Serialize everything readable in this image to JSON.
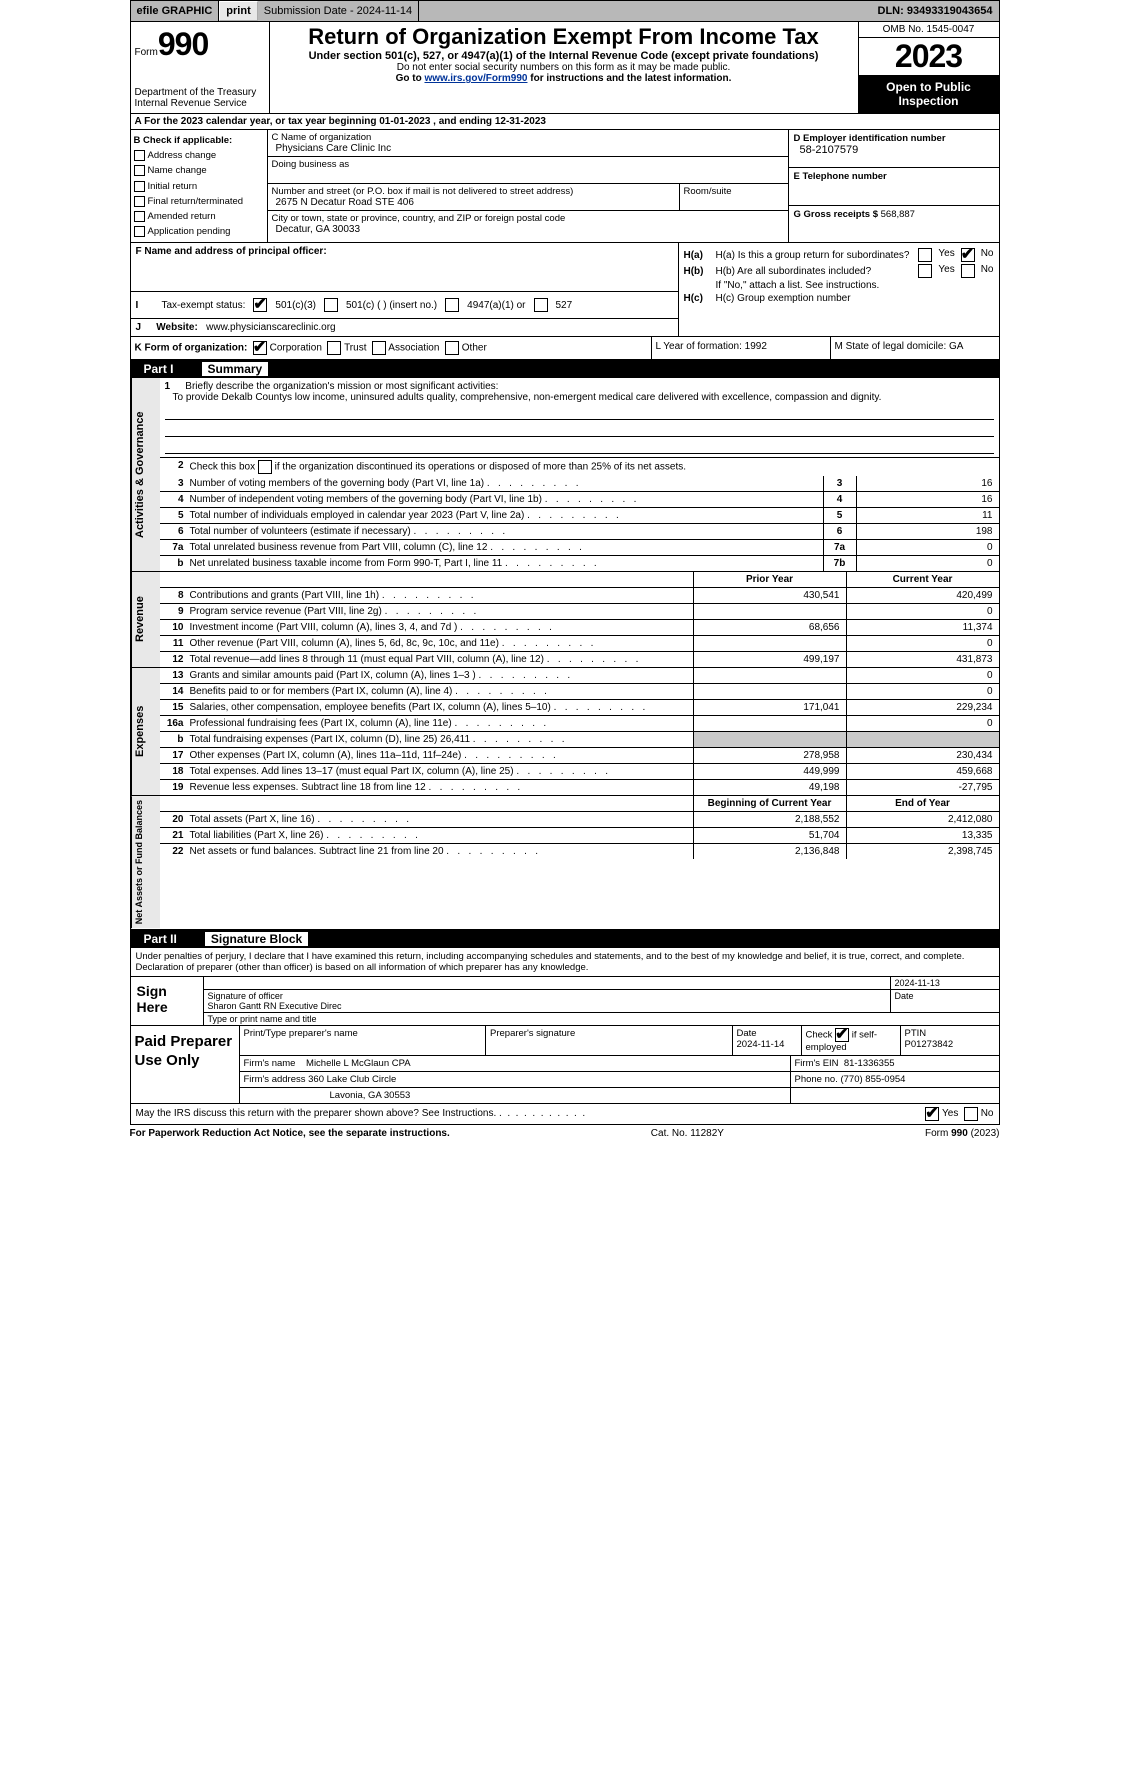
{
  "topbar": {
    "efile": "efile GRAPHIC",
    "print": "print",
    "submission": "Submission Date - 2024-11-14",
    "dln": "DLN: 93493319043654"
  },
  "header": {
    "form_word": "Form",
    "form_num": "990",
    "dept": "Department of the Treasury",
    "irs": "Internal Revenue Service",
    "title": "Return of Organization Exempt From Income Tax",
    "sub1": "Under section 501(c), 527, or 4947(a)(1) of the Internal Revenue Code (except private foundations)",
    "sub2": "Do not enter social security numbers on this form as it may be made public.",
    "sub3_pre": "Go to ",
    "sub3_link": "www.irs.gov/Form990",
    "sub3_post": " for instructions and the latest information.",
    "omb": "OMB No. 1545-0047",
    "year": "2023",
    "open": "Open to Public Inspection"
  },
  "row_a": "A  For the 2023 calendar year, or tax year beginning 01-01-2023    , and ending 12-31-2023",
  "block_b": {
    "title": "B Check if applicable:",
    "items": [
      "Address change",
      "Name change",
      "Initial return",
      "Final return/terminated",
      "Amended return",
      "Application pending"
    ]
  },
  "block_c": {
    "name_label": "C Name of organization",
    "name": "Physicians Care Clinic Inc",
    "dba_label": "Doing business as",
    "street_label": "Number and street (or P.O. box if mail is not delivered to street address)",
    "street": "2675 N Decatur Road STE 406",
    "room_label": "Room/suite",
    "city_label": "City or town, state or province, country, and ZIP or foreign postal code",
    "city": "Decatur, GA  30033"
  },
  "block_de": {
    "ein_label": "D Employer identification number",
    "ein": "58-2107579",
    "phone_label": "E Telephone number",
    "gross_label": "G Gross receipts $",
    "gross": "568,887"
  },
  "block_f": {
    "f_label": "F  Name and address of principal officer:",
    "i_label": "Tax-exempt status:",
    "i_501c3": "501(c)(3)",
    "i_501c": "501(c) (  ) (insert no.)",
    "i_4947": "4947(a)(1) or",
    "i_527": "527",
    "j_label": "Website:",
    "j_val": "www.physicianscareclinic.org"
  },
  "block_h": {
    "ha": "H(a)  Is this a group return for subordinates?",
    "hb": "H(b)  Are all subordinates included?",
    "hb_note": "If \"No,\" attach a list. See instructions.",
    "hc": "H(c)  Group exemption number",
    "yes": "Yes",
    "no": "No"
  },
  "row_klm": {
    "k_label": "K Form of organization:",
    "k_corp": "Corporation",
    "k_trust": "Trust",
    "k_assoc": "Association",
    "k_other": "Other",
    "l": "L Year of formation: 1992",
    "m": "M State of legal domicile: GA"
  },
  "part1": {
    "label": "Part I",
    "title": "Summary"
  },
  "summary": {
    "line1": "Briefly describe the organization's mission or most significant activities:",
    "mission": "To provide Dekalb Countys low income, uninsured adults quality, comprehensive, non-emergent medical care delivered with excellence, compassion and dignity.",
    "line2": "Check this box      if the organization discontinued its operations or disposed of more than 25% of its net assets.",
    "lines_single": [
      {
        "n": "3",
        "d": "Number of voting members of the governing body (Part VI, line 1a)",
        "box": "3",
        "v": "16"
      },
      {
        "n": "4",
        "d": "Number of independent voting members of the governing body (Part VI, line 1b)",
        "box": "4",
        "v": "16"
      },
      {
        "n": "5",
        "d": "Total number of individuals employed in calendar year 2023 (Part V, line 2a)",
        "box": "5",
        "v": "11"
      },
      {
        "n": "6",
        "d": "Total number of volunteers (estimate if necessary)",
        "box": "6",
        "v": "198"
      },
      {
        "n": "7a",
        "d": "Total unrelated business revenue from Part VIII, column (C), line 12",
        "box": "7a",
        "v": "0"
      },
      {
        "n": "b",
        "d": "Net unrelated business taxable income from Form 990-T, Part I, line 11",
        "box": "7b",
        "v": "0"
      }
    ],
    "col_prior": "Prior Year",
    "col_current": "Current Year",
    "revenue": [
      {
        "n": "8",
        "d": "Contributions and grants (Part VIII, line 1h)",
        "p": "430,541",
        "c": "420,499"
      },
      {
        "n": "9",
        "d": "Program service revenue (Part VIII, line 2g)",
        "p": "",
        "c": "0"
      },
      {
        "n": "10",
        "d": "Investment income (Part VIII, column (A), lines 3, 4, and 7d )",
        "p": "68,656",
        "c": "11,374"
      },
      {
        "n": "11",
        "d": "Other revenue (Part VIII, column (A), lines 5, 6d, 8c, 9c, 10c, and 11e)",
        "p": "",
        "c": "0"
      },
      {
        "n": "12",
        "d": "Total revenue—add lines 8 through 11 (must equal Part VIII, column (A), line 12)",
        "p": "499,197",
        "c": "431,873"
      }
    ],
    "expenses": [
      {
        "n": "13",
        "d": "Grants and similar amounts paid (Part IX, column (A), lines 1–3 )",
        "p": "",
        "c": "0"
      },
      {
        "n": "14",
        "d": "Benefits paid to or for members (Part IX, column (A), line 4)",
        "p": "",
        "c": "0"
      },
      {
        "n": "15",
        "d": "Salaries, other compensation, employee benefits (Part IX, column (A), lines 5–10)",
        "p": "171,041",
        "c": "229,234"
      },
      {
        "n": "16a",
        "d": "Professional fundraising fees (Part IX, column (A), line 11e)",
        "p": "",
        "c": "0"
      },
      {
        "n": "b",
        "d": "Total fundraising expenses (Part IX, column (D), line 25) 26,411",
        "p": "GREY",
        "c": "GREY"
      },
      {
        "n": "17",
        "d": "Other expenses (Part IX, column (A), lines 11a–11d, 11f–24e)",
        "p": "278,958",
        "c": "230,434"
      },
      {
        "n": "18",
        "d": "Total expenses. Add lines 13–17 (must equal Part IX, column (A), line 25)",
        "p": "449,999",
        "c": "459,668"
      },
      {
        "n": "19",
        "d": "Revenue less expenses. Subtract line 18 from line 12",
        "p": "49,198",
        "c": "-27,795"
      }
    ],
    "col_boy": "Beginning of Current Year",
    "col_eoy": "End of Year",
    "netassets": [
      {
        "n": "20",
        "d": "Total assets (Part X, line 16)",
        "p": "2,188,552",
        "c": "2,412,080"
      },
      {
        "n": "21",
        "d": "Total liabilities (Part X, line 26)",
        "p": "51,704",
        "c": "13,335"
      },
      {
        "n": "22",
        "d": "Net assets or fund balances. Subtract line 21 from line 20",
        "p": "2,136,848",
        "c": "2,398,745"
      }
    ]
  },
  "vtabs": {
    "gov": "Activities & Governance",
    "rev": "Revenue",
    "exp": "Expenses",
    "net": "Net Assets or Fund Balances"
  },
  "part2": {
    "label": "Part II",
    "title": "Signature Block"
  },
  "sig": {
    "declaration": "Under penalties of perjury, I declare that I have examined this return, including accompanying schedules and statements, and to the best of my knowledge and belief, it is true, correct, and complete. Declaration of preparer (other than officer) is based on all information of which preparer has any knowledge.",
    "sign_here": "Sign Here",
    "sig_officer": "Signature of officer",
    "officer_name": "Sharon Gantt RN  Executive Direc",
    "type_name": "Type or print name and title",
    "date_label": "Date",
    "date1": "2024-11-13"
  },
  "paid": {
    "label": "Paid Preparer Use Only",
    "print_label": "Print/Type preparer's name",
    "sig_label": "Preparer's signature",
    "date": "2024-11-14",
    "check_label": "Check",
    "self_emp": "if self-employed",
    "ptin_label": "PTIN",
    "ptin": "P01273842",
    "firm_name_label": "Firm's name",
    "firm_name": "Michelle L McGlaun CPA",
    "firm_ein_label": "Firm's EIN",
    "firm_ein": "81-1336355",
    "firm_addr_label": "Firm's address",
    "firm_addr1": "360 Lake Club Circle",
    "firm_addr2": "Lavonia, GA  30553",
    "phone_label": "Phone no.",
    "phone": "(770) 855-0954"
  },
  "discuss": {
    "text": "May the IRS discuss this return with the preparer shown above? See Instructions.",
    "yes": "Yes",
    "no": "No"
  },
  "footer": {
    "left": "For Paperwork Reduction Act Notice, see the separate instructions.",
    "mid": "Cat. No. 11282Y",
    "right_pre": "Form ",
    "right_form": "990",
    "right_post": " (2023)"
  }
}
